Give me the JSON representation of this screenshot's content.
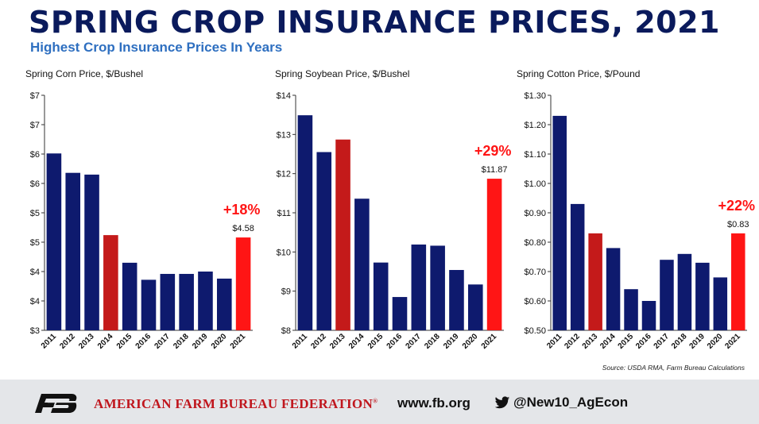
{
  "header": {
    "title": "SPRING CROP INSURANCE PRICES, 2021",
    "subtitle": "Highest Crop Insurance Prices In Years"
  },
  "colors": {
    "navy": "#0e1a6e",
    "highlight_dark": "#c41a1a",
    "highlight_bright": "#ff1515",
    "title": "#0a1a5c",
    "subtitle": "#2e6fc0"
  },
  "chart_data": [
    {
      "type": "bar",
      "title": "Spring Corn Price, $/Bushel",
      "categories": [
        "2011",
        "2012",
        "2013",
        "2014",
        "2015",
        "2016",
        "2017",
        "2018",
        "2019",
        "2020",
        "2021"
      ],
      "values": [
        6.01,
        5.68,
        5.65,
        4.62,
        4.15,
        3.86,
        3.96,
        3.96,
        4.0,
        3.88,
        4.58
      ],
      "ylim": [
        3,
        7
      ],
      "yticks": [
        3,
        3.5,
        4,
        4.5,
        5,
        5.5,
        6,
        6.5,
        7
      ],
      "ytick_labels": [
        "$3",
        "$4",
        "$4",
        "$5",
        "$5",
        "$6",
        "$6",
        "$7",
        "$7"
      ],
      "highlight": {
        "2014": "dark-red",
        "2021": "bright-red"
      },
      "annotation": {
        "change": "+18%",
        "value_label": "$4.58"
      }
    },
    {
      "type": "bar",
      "title": "Spring Soybean Price, $/Bushel",
      "categories": [
        "2011",
        "2012",
        "2013",
        "2014",
        "2015",
        "2016",
        "2017",
        "2018",
        "2019",
        "2020",
        "2021"
      ],
      "values": [
        13.49,
        12.55,
        12.87,
        11.36,
        9.73,
        8.85,
        10.19,
        10.16,
        9.54,
        9.17,
        11.87
      ],
      "ylim": [
        8,
        14
      ],
      "yticks": [
        8,
        9,
        10,
        11,
        12,
        13,
        14
      ],
      "ytick_labels": [
        "$8",
        "$9",
        "$10",
        "$11",
        "$12",
        "$13",
        "$14"
      ],
      "highlight": {
        "2013": "dark-red",
        "2021": "bright-red"
      },
      "annotation": {
        "change": "+29%",
        "value_label": "$11.87"
      }
    },
    {
      "type": "bar",
      "title": "Spring Cotton Price, $/Pound",
      "categories": [
        "2011",
        "2012",
        "2013",
        "2014",
        "2015",
        "2016",
        "2017",
        "2018",
        "2019",
        "2020",
        "2021"
      ],
      "values": [
        1.23,
        0.93,
        0.83,
        0.78,
        0.64,
        0.6,
        0.74,
        0.76,
        0.73,
        0.68,
        0.83
      ],
      "ylim": [
        0.5,
        1.3
      ],
      "yticks": [
        0.5,
        0.6,
        0.7,
        0.8,
        0.9,
        1.0,
        1.1,
        1.2,
        1.3
      ],
      "ytick_labels": [
        "$0.50",
        "$0.60",
        "$0.70",
        "$0.80",
        "$0.90",
        "$1.00",
        "$1.10",
        "$1.20",
        "$1.30"
      ],
      "highlight": {
        "2013": "dark-red",
        "2021": "bright-red"
      },
      "annotation": {
        "change": "+22%",
        "value_label": "$0.83"
      }
    }
  ],
  "source": "Source: USDA RMA, Farm Bureau Calculations",
  "footer": {
    "org_name": "AMERICAN FARM BUREAU FEDERATION",
    "trademark": "®",
    "website": "www.fb.org",
    "twitter": "@New10_AgEcon"
  }
}
